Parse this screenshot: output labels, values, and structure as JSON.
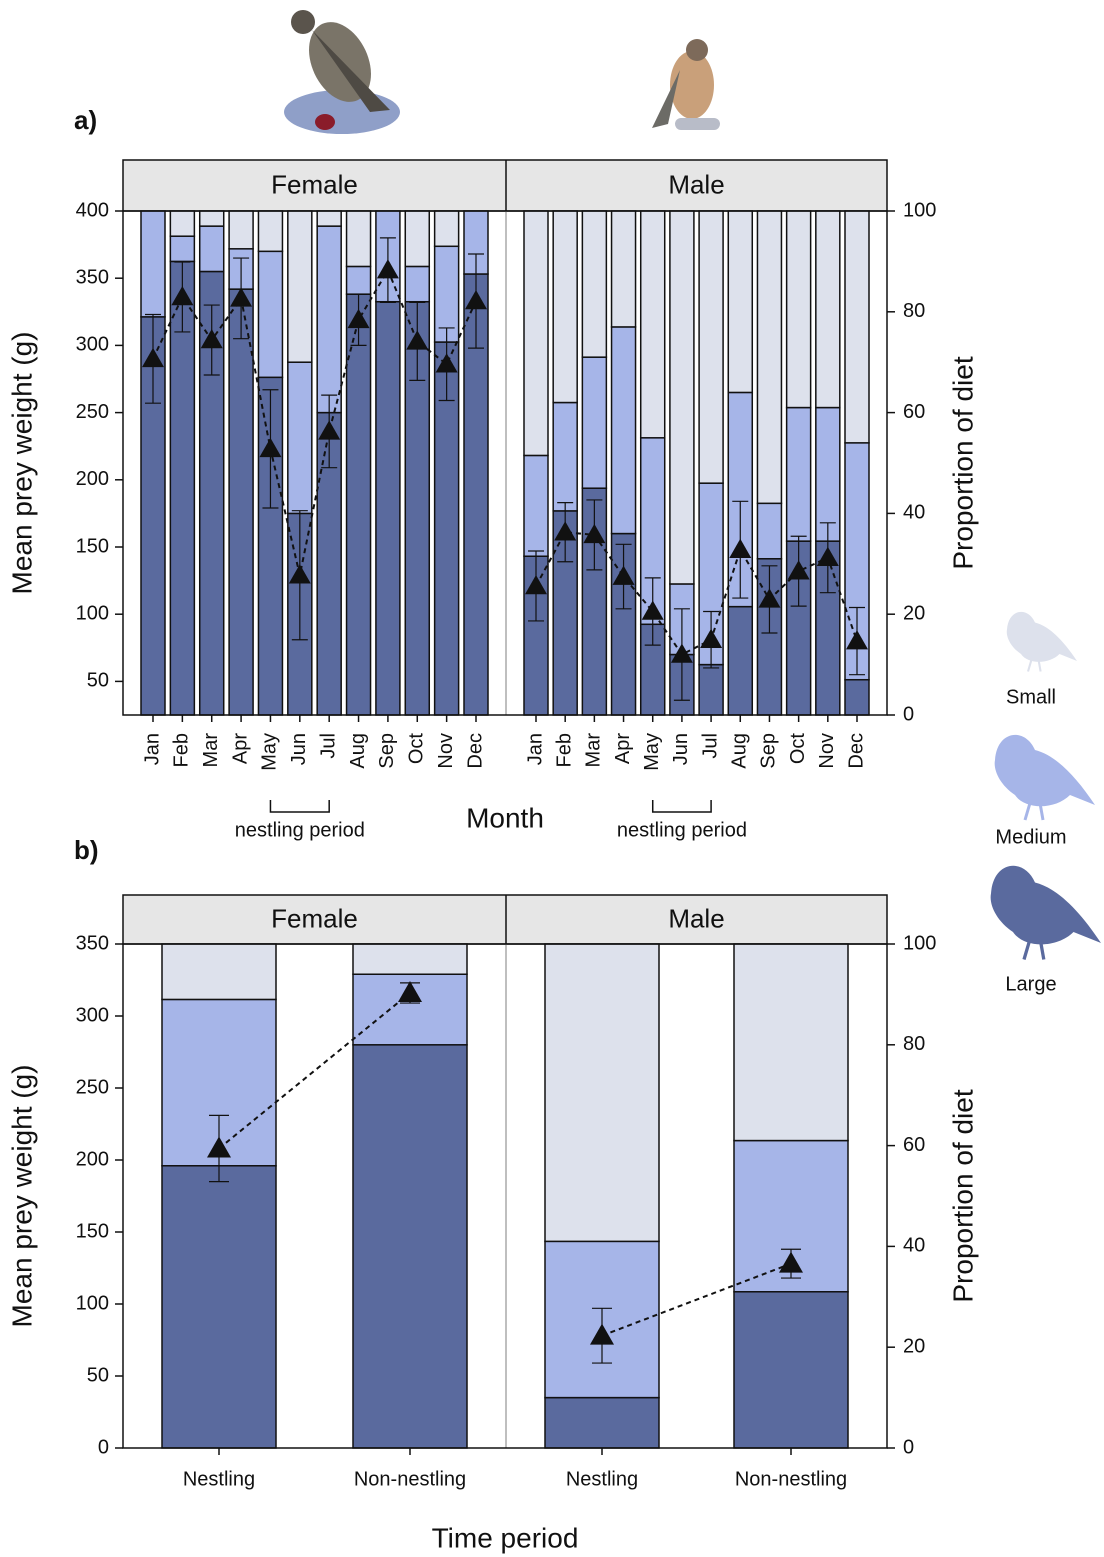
{
  "chart_data": [
    {
      "type": "stacked_bar_points",
      "panel_label": "a)",
      "x_label": "Month",
      "y_label": "Mean prey weight (g)",
      "y2_label": "Proportion of diet",
      "ylim": [
        25,
        400
      ],
      "yticks": [
        50,
        100,
        150,
        200,
        250,
        300,
        350,
        400
      ],
      "y2lim": [
        0,
        100
      ],
      "y2ticks": [
        0,
        20,
        40,
        60,
        80,
        100
      ],
      "categories": [
        "Jan",
        "Feb",
        "Mar",
        "Apr",
        "May",
        "Jun",
        "Jul",
        "Aug",
        "Sep",
        "Oct",
        "Nov",
        "Dec"
      ],
      "facets": [
        {
          "name": "Female",
          "note": "nestling period",
          "series": [
            {
              "values": [
                0,
                5,
                3,
                7.5,
                8,
                30,
                3,
                11,
                0,
                11,
                7,
                0
              ]
            },
            {
              "values": [
                21,
                5,
                9,
                8,
                25,
                30,
                37,
                5.5,
                18,
                7,
                19,
                12.5
              ]
            },
            {
              "values": [
                79,
                90,
                88,
                84.5,
                67,
                40,
                60,
                83.5,
                82,
                82,
                74,
                87.5
              ]
            }
          ],
          "mean": [
            290,
            336,
            304,
            335,
            223,
            129,
            236,
            319,
            356,
            303,
            286,
            333
          ],
          "error": [
            33,
            26,
            26,
            30,
            44,
            48,
            27,
            19,
            24,
            29,
            27,
            35
          ]
        },
        {
          "name": "Male",
          "note": "nestling period",
          "series": [
            {
              "values": [
                48.5,
                38,
                29,
                23,
                45,
                74,
                54,
                36,
                58,
                39,
                39,
                46
              ]
            },
            {
              "values": [
                20,
                21.5,
                26,
                41,
                37,
                14,
                36,
                42.5,
                11,
                26.5,
                26.5,
                47
              ]
            },
            {
              "values": [
                31.5,
                40.5,
                45,
                36,
                18,
                12,
                10,
                21.5,
                31,
                34.5,
                34.5,
                7
              ]
            }
          ],
          "mean": [
            121,
            161,
            159,
            128,
            102,
            70,
            81,
            148,
            111,
            132,
            142,
            80
          ],
          "error": [
            26,
            22,
            26,
            24,
            25,
            34,
            21,
            36,
            25,
            26,
            26,
            25
          ]
        }
      ]
    },
    {
      "type": "stacked_bar_points",
      "panel_label": "b)",
      "x_label": "Time period",
      "y_label": "Mean prey weight (g)",
      "y2_label": "Proportion of diet",
      "ylim": [
        0,
        350
      ],
      "yticks": [
        0,
        50,
        100,
        150,
        200,
        250,
        300,
        350
      ],
      "y2lim": [
        0,
        100
      ],
      "y2ticks": [
        0,
        20,
        40,
        60,
        80,
        100
      ],
      "categories": [
        "Nestling",
        "Non-nestling"
      ],
      "facets": [
        {
          "name": "Female",
          "series": [
            {
              "values": [
                11,
                6
              ]
            },
            {
              "values": [
                33,
                14
              ]
            },
            {
              "values": [
                56,
                80
              ]
            }
          ],
          "mean": [
            208,
            316
          ],
          "error": [
            23,
            7
          ]
        },
        {
          "name": "Male",
          "series": [
            {
              "values": [
                59,
                39
              ]
            },
            {
              "values": [
                31,
                30
              ]
            },
            {
              "values": [
                10,
                31
              ]
            }
          ],
          "mean": [
            78,
            128
          ],
          "error": [
            19,
            10
          ]
        }
      ]
    }
  ],
  "legend": {
    "items": [
      {
        "name": "Small",
        "color": "#dde1ec"
      },
      {
        "name": "Medium",
        "color": "#a6b5e8"
      },
      {
        "name": "Large",
        "color": "#5a6a9e"
      }
    ]
  }
}
